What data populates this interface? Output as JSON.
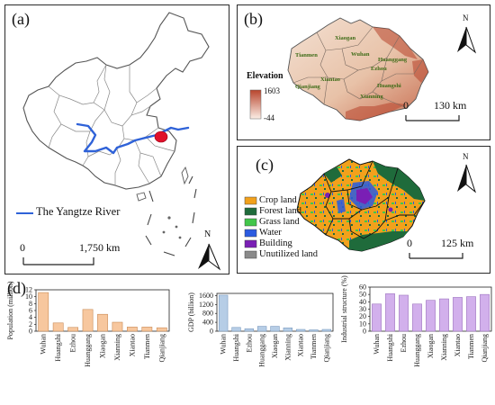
{
  "panels": {
    "a": {
      "label": "(a)",
      "legend_label": "The Yangtze River",
      "scale": {
        "start": "0",
        "end": "1,750 km"
      },
      "north": "N",
      "colors": {
        "river": "#2f62d8",
        "study_area": "#e0102a",
        "province_fill": "#ffffff",
        "province_stroke": "#666666"
      }
    },
    "b": {
      "label": "(b)",
      "legend_title": "Elevation",
      "legend_max": "1603",
      "legend_min": "-44",
      "scale": {
        "start": "0",
        "end": "130 km"
      },
      "north": "N",
      "cities": [
        "Xiaogan",
        "Tianmen",
        "Wuhan",
        "Huanggang",
        "Ezhou",
        "Xiantao",
        "Huangshi",
        "Qianjiang",
        "Xianning"
      ],
      "colors": {
        "low": "#f2dccd",
        "high": "#b8442c",
        "city_label": "#3d6b16"
      }
    },
    "c": {
      "label": "(c)",
      "legend": [
        {
          "label": "Crop land",
          "color": "#f2a11c"
        },
        {
          "label": "Forest land",
          "color": "#1f6b3b"
        },
        {
          "label": "Grass land",
          "color": "#42c64a"
        },
        {
          "label": "Water",
          "color": "#2b5be0"
        },
        {
          "label": "Building",
          "color": "#7a1fb5"
        },
        {
          "label": "Unutilized land",
          "color": "#8a8a8a"
        }
      ],
      "scale": {
        "start": "0",
        "end": "125 km"
      },
      "north": "N"
    },
    "d": {
      "label": "(d)"
    }
  },
  "chart_data": [
    {
      "type": "bar",
      "categories": [
        "Wuhan",
        "Huangshi",
        "Ezhou",
        "Huanggang",
        "Xiaogan",
        "Xianning",
        "Xiantao",
        "Tianmen",
        "Qianjiang"
      ],
      "values": [
        11.2,
        2.4,
        1.1,
        6.3,
        4.9,
        2.6,
        1.2,
        1.2,
        1.0
      ],
      "ylabel": "Population (million)",
      "ylim": [
        0,
        12
      ],
      "yticks": [
        "0",
        "2",
        "4",
        "6",
        "8",
        "10",
        "12"
      ],
      "color": "#f7c79e",
      "stroke": "#c98a55"
    },
    {
      "type": "bar",
      "categories": [
        "Wuhan",
        "Huangshi",
        "Ezhou",
        "Huanggang",
        "Xiaogan",
        "Xianning",
        "Xiantao",
        "Tianmen",
        "Qianjiang"
      ],
      "values": [
        1620,
        170,
        110,
        220,
        220,
        150,
        80,
        60,
        80
      ],
      "ylabel": "GDP (billion)",
      "ylim": [
        0,
        1700
      ],
      "yticks": [
        "0",
        "400",
        "800",
        "1200",
        "1600"
      ],
      "ytick_values": [
        0,
        400,
        800,
        1200,
        1600
      ],
      "color": "#b6cde6",
      "stroke": "#7c9cc0"
    },
    {
      "type": "bar",
      "categories": [
        "Wuhan",
        "Huangshi",
        "Ezhou",
        "Huanggang",
        "Xiaogan",
        "Xianning",
        "Xiantao",
        "Tianmen",
        "Qianjiang"
      ],
      "values": [
        37,
        51,
        49,
        37,
        42,
        44,
        46,
        47,
        50
      ],
      "ylabel": "Industrial structure (%)",
      "ylim": [
        0,
        60
      ],
      "yticks": [
        "0",
        "10",
        "20",
        "30",
        "40",
        "50",
        "60"
      ],
      "color": "#d2b0ec",
      "stroke": "#9d74bf"
    }
  ]
}
